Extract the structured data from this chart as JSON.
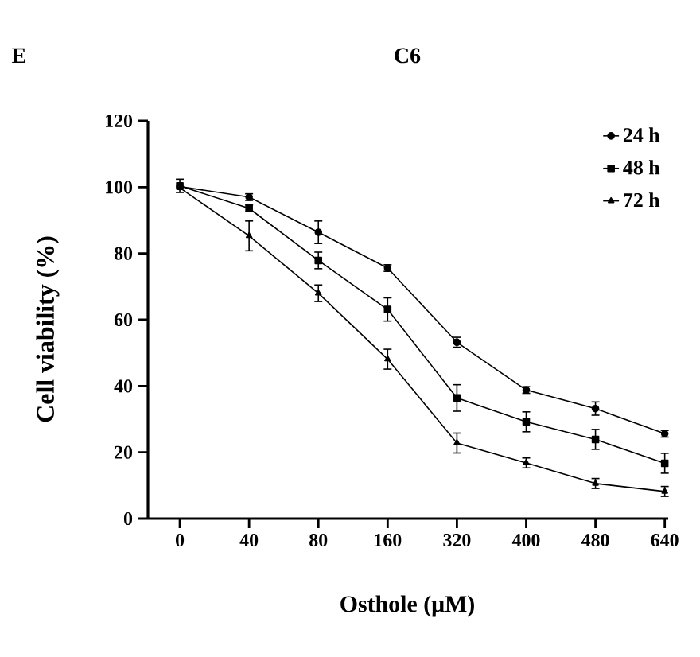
{
  "chart_data": {
    "type": "line",
    "title": "C6",
    "xlabel": "Osthole (μM)",
    "ylabel": "Cell viability (%)",
    "annotations": [
      "E"
    ],
    "categories": [
      "0",
      "40",
      "80",
      "160",
      "320",
      "400",
      "480",
      "640"
    ],
    "ylim": [
      0,
      120
    ],
    "yticks": [
      0,
      20,
      40,
      60,
      80,
      100,
      120
    ],
    "legend": "top right",
    "grid": false,
    "line_style": "solid",
    "series": [
      {
        "name": "24 h",
        "color": "#000000",
        "marker": "circle",
        "values": [
          100.2,
          97,
          86.4,
          75.6,
          53.2,
          38.8,
          33.2,
          25.6
        ],
        "errors": [
          null,
          1,
          3.4,
          1,
          1.5,
          1,
          2,
          1
        ]
      },
      {
        "name": "48 h",
        "color": "#000000",
        "marker": "square",
        "values": [
          100.4,
          93.6,
          77.9,
          63.1,
          36.4,
          29.2,
          23.9,
          16.7
        ],
        "errors": [
          2,
          1,
          2.5,
          3.5,
          4,
          3,
          3,
          3
        ]
      },
      {
        "name": "72 h",
        "color": "#000000",
        "marker": "triangle",
        "values": [
          99.8,
          85.3,
          68,
          48.1,
          22.8,
          16.8,
          10.6,
          8.2
        ],
        "errors": [
          null,
          4.5,
          2.5,
          3,
          3,
          1.5,
          1.5,
          1.5
        ]
      }
    ]
  }
}
